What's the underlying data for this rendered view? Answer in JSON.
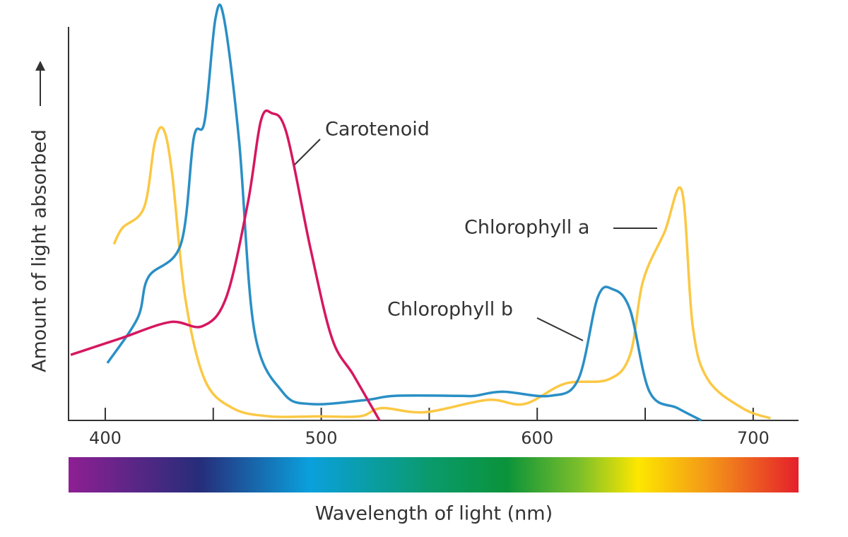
{
  "chart_data": {
    "type": "line",
    "x_label": "Wavelength of light (nm)",
    "y_label": "Amount of light absorbed",
    "xlim": [
      383,
      721
    ],
    "ylim": [
      0,
      100
    ],
    "xticks": [
      400,
      500,
      600,
      700
    ],
    "xminorticks": [
      450,
      550,
      650
    ],
    "spectrum_bar": true,
    "series": [
      {
        "name": "Chlorophyll a",
        "color": "#fbc844",
        "x": [
          404,
          408,
          418,
          423,
          427,
          431,
          437,
          446,
          459,
          476,
          499,
          518,
          528,
          548,
          577,
          594,
          613,
          633,
          643,
          649,
          659,
          667,
          672,
          679,
          695,
          708
        ],
        "values": [
          43,
          47,
          52,
          68,
          71,
          60,
          30,
          10,
          3,
          1,
          1,
          1,
          3,
          2,
          5,
          4,
          9,
          10,
          16,
          34,
          46,
          56,
          23,
          10,
          3,
          0.5
        ]
      },
      {
        "name": "Chlorophyll b",
        "color": "#2a8fc5",
        "x": [
          401,
          415,
          420,
          435,
          441,
          446,
          451,
          455,
          462,
          469,
          482,
          495,
          521,
          534,
          564,
          571,
          584,
          606,
          619,
          628,
          635,
          643,
          652,
          665,
          676
        ],
        "values": [
          14,
          25,
          35,
          43,
          69,
          73,
          98,
          98,
          68,
          22,
          7,
          4,
          5,
          6,
          6,
          6,
          7,
          6,
          10,
          30,
          32,
          27,
          7,
          3,
          0
        ]
      },
      {
        "name": "Carotenoid",
        "color": "#d6175f",
        "x": [
          384,
          407,
          430,
          445,
          456,
          466,
          472,
          477,
          484,
          495,
          505,
          515,
          527
        ],
        "values": [
          16,
          20,
          24,
          23,
          30,
          53,
          73,
          75,
          70,
          42,
          20,
          11,
          0
        ]
      }
    ]
  }
}
